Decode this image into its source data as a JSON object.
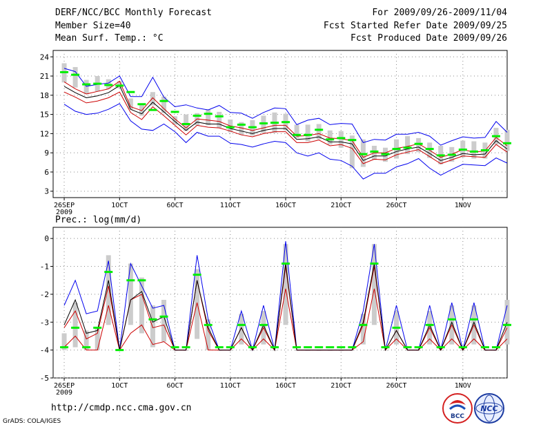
{
  "header": {
    "title": "DERF/NCC/BCC Monthly Forecast",
    "member_size": "Member Size=40",
    "variable_temp": "Mean Surf. Temp.: °C",
    "period": "For 2009/09/26-2009/11/04",
    "started": "Fcst Started Refer Date 2009/09/25",
    "produced": "Fcst Produced Date 2009/09/26"
  },
  "footer": {
    "url": "http://cmdp.ncc.cma.gov.cn",
    "credit": "GrADS: COLA/IGES",
    "logo_bcc": "BCC",
    "logo_ncc": "NCC"
  },
  "colors": {
    "obs": "#00ee00",
    "spread": "#cccccc",
    "envelope": "#0000ee",
    "inner": "#cc0000",
    "mean": "#000000"
  },
  "chart_data": [
    {
      "type": "line",
      "title": "Mean Surf. Temp.: °C",
      "x_ticks": [
        "26SEP",
        "1OCT",
        "6OCT",
        "11OCT",
        "16OCT",
        "21OCT",
        "26OCT",
        "1NOV"
      ],
      "x_tick_days": [
        0,
        5,
        10,
        15,
        20,
        25,
        30,
        36
      ],
      "x_year_label": "2009",
      "xlim": [
        -1,
        40
      ],
      "ylim": [
        2,
        25
      ],
      "y_ticks": [
        3,
        6,
        9,
        12,
        15,
        18,
        21,
        24
      ],
      "series": [
        {
          "name": "observed",
          "values": [
            21.6,
            21.2,
            19.7,
            19.8,
            19.6,
            19.5,
            18.5,
            16.6,
            15.7,
            17.1,
            15.4,
            13.5,
            14.8,
            15.1,
            14.7,
            13.0,
            13.4,
            13.0,
            13.6,
            13.7,
            13.8,
            11.8,
            11.8,
            12.6,
            11.1,
            11.3,
            11.0,
            8.8,
            9.2,
            8.8,
            9.6,
            9.8,
            10.4,
            9.6,
            8.6,
            8.7,
            9.5,
            9.2,
            9.4,
            11.6,
            10.5
          ]
        },
        {
          "name": "max",
          "values": [
            16.6,
            15.5,
            15.0,
            15.2,
            15.8,
            16.7,
            14.0,
            12.7,
            12.5,
            13.5,
            12.3,
            10.6,
            12.2,
            11.6,
            11.6,
            10.5,
            10.3,
            9.9,
            10.4,
            10.8,
            10.6,
            9.0,
            8.5,
            9.0,
            8.0,
            7.8,
            6.9,
            4.9,
            5.8,
            5.8,
            6.8,
            7.3,
            8.1,
            6.6,
            5.5,
            6.4,
            7.2,
            7.1,
            7.0,
            8.2,
            7.4
          ]
        },
        {
          "name": "p75",
          "values": [
            18.5,
            17.7,
            16.8,
            17.1,
            17.6,
            18.5,
            15.3,
            14.2,
            16.2,
            14.8,
            13.3,
            11.8,
            13.3,
            13.0,
            12.9,
            12.4,
            11.8,
            11.5,
            12.0,
            12.3,
            12.3,
            10.6,
            10.6,
            11.0,
            10.1,
            10.3,
            9.7,
            7.3,
            8.0,
            7.9,
            8.7,
            9.1,
            9.5,
            8.4,
            7.3,
            7.9,
            8.5,
            8.4,
            8.3,
            10.3,
            9.1
          ]
        },
        {
          "name": "mean",
          "values": [
            19.4,
            18.4,
            17.6,
            17.9,
            18.4,
            19.5,
            15.8,
            15.1,
            16.9,
            15.4,
            13.9,
            12.5,
            13.8,
            13.5,
            13.5,
            12.8,
            12.4,
            12.0,
            12.5,
            12.8,
            12.8,
            11.1,
            11.2,
            11.5,
            10.7,
            10.7,
            10.4,
            7.8,
            8.5,
            8.5,
            9.2,
            9.6,
            9.9,
            8.9,
            7.8,
            8.3,
            8.9,
            8.7,
            8.8,
            10.9,
            9.6
          ]
        },
        {
          "name": "p25",
          "values": [
            20.1,
            19.0,
            18.2,
            18.6,
            19.0,
            20.2,
            16.2,
            15.6,
            17.6,
            15.9,
            14.3,
            12.9,
            14.3,
            14.1,
            13.9,
            13.2,
            12.9,
            12.5,
            12.9,
            13.3,
            13.3,
            11.6,
            11.7,
            12.0,
            11.3,
            11.2,
            10.9,
            8.3,
            9.0,
            9.0,
            9.7,
            10.0,
            10.4,
            9.4,
            8.3,
            8.8,
            9.5,
            9.1,
            9.3,
            11.4,
            10.1
          ]
        },
        {
          "name": "min",
          "values": [
            22.2,
            21.7,
            19.4,
            19.7,
            19.9,
            21.0,
            17.8,
            17.8,
            20.8,
            17.7,
            16.2,
            16.5,
            16.0,
            15.7,
            16.4,
            15.3,
            15.2,
            14.4,
            15.3,
            16.0,
            15.9,
            13.4,
            14.1,
            14.4,
            13.4,
            13.6,
            13.5,
            10.6,
            11.1,
            11.0,
            11.9,
            11.9,
            12.2,
            11.6,
            10.2,
            10.9,
            11.5,
            11.3,
            11.4,
            13.9,
            12.2
          ]
        }
      ],
      "spread_bars": {
        "low": [
          20.0,
          19.2,
          18.2,
          18.6,
          19.0,
          19.1,
          15.8,
          14.8,
          16.4,
          15.2,
          13.4,
          12.4,
          13.3,
          13.3,
          12.9,
          12.2,
          11.8,
          11.7,
          12.1,
          12.1,
          12.5,
          11.3,
          10.8,
          11.1,
          10.3,
          9.8,
          6.6,
          6.8,
          7.9,
          7.6,
          8.1,
          8.8,
          9.1,
          8.2,
          7.2,
          7.6,
          8.3,
          8.1,
          8.1,
          10.3,
          9.3
        ],
        "high": [
          23.0,
          22.4,
          20.4,
          21.0,
          20.5,
          20.2,
          17.5,
          16.5,
          18.5,
          17.8,
          14.7,
          15.0,
          15.2,
          15.8,
          15.4,
          14.2,
          13.8,
          14.1,
          14.8,
          15.3,
          15.1,
          13.4,
          13.4,
          13.5,
          12.5,
          12.4,
          11.7,
          11.1,
          10.1,
          9.8,
          11.1,
          11.6,
          11.3,
          10.6,
          10.1,
          9.9,
          10.9,
          10.8,
          10.6,
          12.9,
          12.6
        ]
      }
    },
    {
      "type": "line",
      "title": "Prec.: log(mm/d)",
      "x_ticks": [
        "26SEP",
        "1OCT",
        "6OCT",
        "11OCT",
        "16OCT",
        "21OCT",
        "26OCT",
        "1NOV"
      ],
      "x_tick_days": [
        0,
        5,
        10,
        15,
        20,
        25,
        30,
        36
      ],
      "x_year_label": "2009",
      "xlim": [
        -1,
        40
      ],
      "ylim": [
        -5,
        0.4
      ],
      "y_ticks": [
        -5,
        -4,
        -3,
        -2,
        -1,
        0
      ],
      "series": [
        {
          "name": "observed",
          "values": [
            -3.9,
            -3.2,
            -3.9,
            -3.2,
            -1.2,
            -4.0,
            -1.5,
            -1.5,
            -2.9,
            -2.8,
            -3.9,
            -3.9,
            -1.3,
            -3.1,
            -3.9,
            -3.9,
            -3.1,
            -3.9,
            -3.1,
            -3.9,
            -0.9,
            -3.9,
            -3.9,
            -3.9,
            -3.9,
            -3.9,
            -3.9,
            -3.1,
            -0.9,
            -3.9,
            -3.2,
            -3.9,
            -3.9,
            -3.1,
            -3.9,
            -2.9,
            -3.9,
            -2.9,
            -3.9,
            -3.9,
            -3.1
          ]
        },
        {
          "name": "max",
          "values": [
            -2.4,
            -1.5,
            -2.7,
            -2.6,
            -0.8,
            -4.0,
            -0.9,
            -1.7,
            -2.5,
            -2.4,
            -4.0,
            -4.0,
            -0.6,
            -2.9,
            -4.0,
            -4.0,
            -2.6,
            -4.0,
            -2.4,
            -4.0,
            -0.1,
            -4.0,
            -4.0,
            -4.0,
            -4.0,
            -4.0,
            -4.0,
            -2.6,
            -0.2,
            -4.0,
            -2.4,
            -4.0,
            -4.0,
            -2.4,
            -4.0,
            -2.3,
            -4.0,
            -2.3,
            -4.0,
            -4.0,
            -2.4
          ]
        },
        {
          "name": "mean",
          "values": [
            -3.1,
            -2.2,
            -3.4,
            -3.3,
            -1.5,
            -4.0,
            -2.2,
            -1.9,
            -3.0,
            -2.8,
            -4.0,
            -4.0,
            -1.5,
            -3.2,
            -4.0,
            -4.0,
            -3.2,
            -4.0,
            -3.1,
            -4.0,
            -0.9,
            -4.0,
            -4.0,
            -4.0,
            -4.0,
            -4.0,
            -4.0,
            -3.0,
            -0.9,
            -4.0,
            -3.3,
            -4.0,
            -4.0,
            -3.1,
            -4.0,
            -3.0,
            -4.0,
            -3.0,
            -4.0,
            -4.0,
            -3.0
          ]
        },
        {
          "name": "upper",
          "values": [
            -3.2,
            -2.6,
            -3.6,
            -3.4,
            -1.7,
            -4.0,
            -2.2,
            -2.0,
            -3.2,
            -3.1,
            -4.0,
            -4.0,
            -1.5,
            -3.3,
            -4.0,
            -4.0,
            -3.2,
            -4.0,
            -3.2,
            -4.0,
            -1.0,
            -4.0,
            -4.0,
            -4.0,
            -4.0,
            -4.0,
            -4.0,
            -3.1,
            -1.0,
            -4.0,
            -3.3,
            -4.0,
            -4.0,
            -3.2,
            -4.0,
            -3.1,
            -4.0,
            -3.1,
            -4.0,
            -4.0,
            -3.2
          ]
        },
        {
          "name": "lower",
          "values": [
            -3.9,
            -3.5,
            -4.0,
            -4.0,
            -2.4,
            -4.0,
            -3.4,
            -3.1,
            -3.8,
            -3.7,
            -4.0,
            -4.0,
            -2.3,
            -4.0,
            -4.0,
            -4.0,
            -3.6,
            -4.0,
            -3.6,
            -4.0,
            -1.8,
            -4.0,
            -4.0,
            -4.0,
            -4.0,
            -4.0,
            -4.0,
            -3.7,
            -1.8,
            -4.0,
            -3.6,
            -4.0,
            -4.0,
            -3.6,
            -4.0,
            -3.6,
            -4.0,
            -3.6,
            -4.0,
            -4.0,
            -3.6
          ]
        }
      ],
      "spread_bars": {
        "low": [
          -4.0,
          -3.9,
          -4.0,
          -4.0,
          -3.1,
          -4.0,
          -3.1,
          -3.4,
          -3.9,
          -3.7,
          -4.0,
          -4.0,
          -3.6,
          -4.0,
          -4.0,
          -4.0,
          -3.8,
          -4.0,
          -3.8,
          -4.0,
          -3.1,
          -4.0,
          -4.0,
          -4.0,
          -4.0,
          -4.0,
          -4.0,
          -3.8,
          -3.1,
          -4.0,
          -3.8,
          -4.0,
          -4.0,
          -3.8,
          -4.0,
          -3.8,
          -4.0,
          -3.8,
          -4.0,
          -4.0,
          -3.8
        ],
        "high": [
          -3.4,
          -2.3,
          -3.3,
          -3.2,
          -0.6,
          -4.0,
          -0.9,
          -1.4,
          -2.4,
          -2.2,
          -4.0,
          -4.0,
          -1.1,
          -2.9,
          -4.0,
          -4.0,
          -2.7,
          -4.0,
          -2.6,
          -4.0,
          -0.2,
          -4.0,
          -4.0,
          -4.0,
          -4.0,
          -4.0,
          -4.0,
          -2.7,
          -0.2,
          -4.0,
          -2.6,
          -4.0,
          -4.0,
          -2.6,
          -4.0,
          -2.4,
          -4.0,
          -2.4,
          -4.0,
          -4.0,
          -2.2
        ]
      }
    }
  ]
}
